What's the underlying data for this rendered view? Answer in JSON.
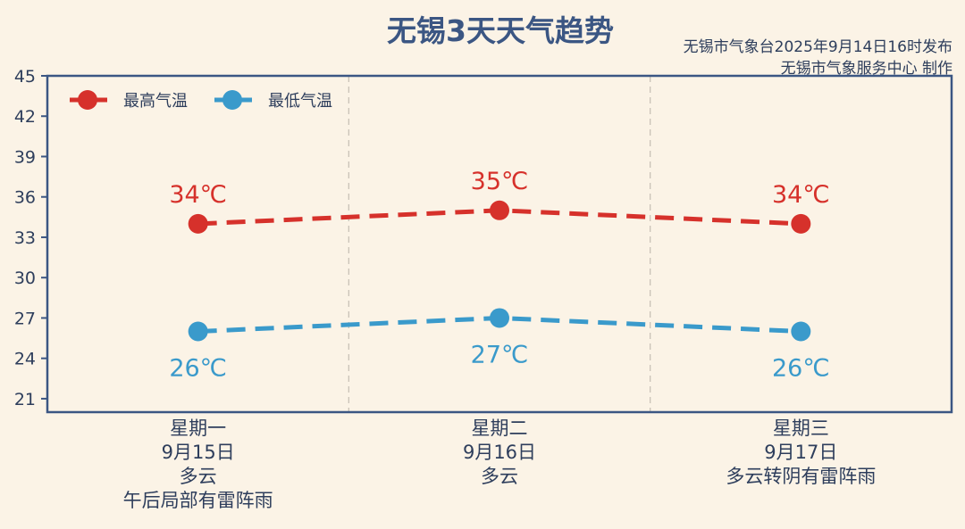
{
  "header": {
    "title": "无锡3天天气趋势",
    "source_line1": "无锡市气象台2025年9月14日16时发布",
    "source_line2": "无锡市气象服务中心 制作"
  },
  "colors": {
    "high": "#d6312b",
    "low": "#3a9acb",
    "axis": "#3b5683",
    "background": "#fbf3e6"
  },
  "chart_data": {
    "type": "line",
    "title": "无锡3天天气趋势",
    "xlabel": "",
    "ylabel": "",
    "ylim": [
      20,
      45
    ],
    "yticks": [
      21,
      24,
      27,
      30,
      33,
      36,
      39,
      42,
      45
    ],
    "grid": "vertical dashed separators between days",
    "legend_position": "top-left",
    "categories": [
      {
        "weekday": "星期一",
        "date": "9月15日",
        "weather": [
          "多云",
          "午后局部有雷阵雨"
        ]
      },
      {
        "weekday": "星期二",
        "date": "9月16日",
        "weather": [
          "多云"
        ]
      },
      {
        "weekday": "星期三",
        "date": "9月17日",
        "weather": [
          "多云转阴有雷阵雨"
        ]
      }
    ],
    "series": [
      {
        "name": "最高气温",
        "values": [
          34,
          35,
          34
        ],
        "labels": [
          "34℃",
          "35℃",
          "34℃"
        ],
        "color": "#d6312b"
      },
      {
        "name": "最低气温",
        "values": [
          26,
          27,
          26
        ],
        "labels": [
          "26℃",
          "27℃",
          "26℃"
        ],
        "color": "#3a9acb"
      }
    ]
  }
}
